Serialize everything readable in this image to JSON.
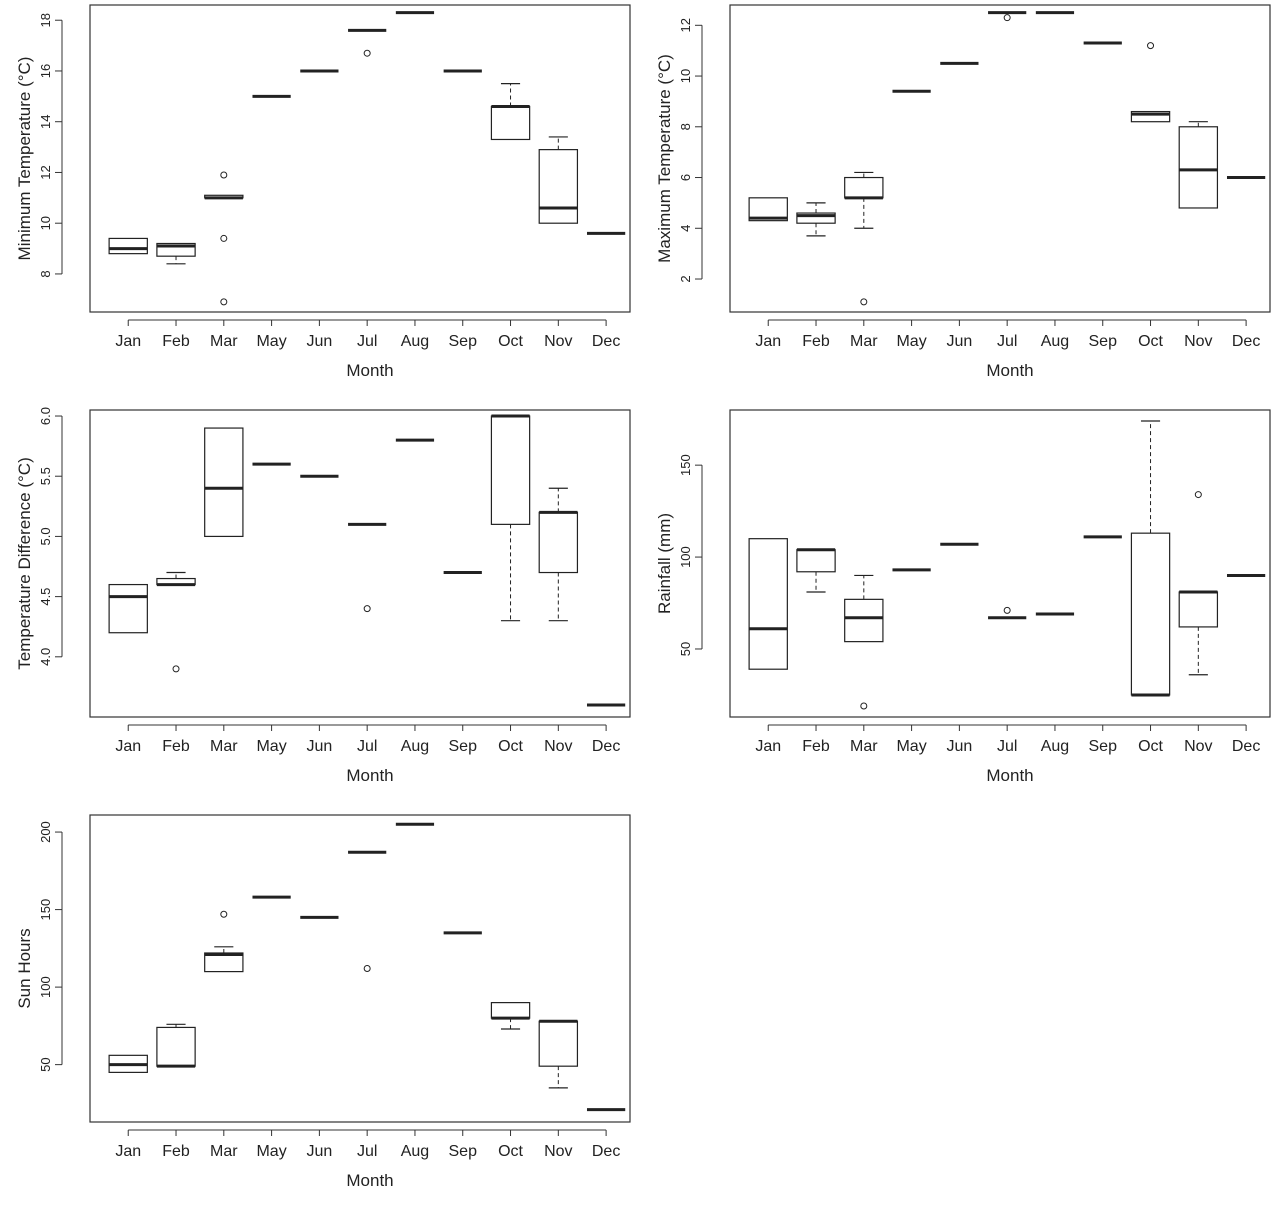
{
  "colors": {
    "axis": "#333333",
    "box": "#222222",
    "text": "#222222"
  },
  "chart_data": [
    {
      "type": "box",
      "id": "tmin",
      "xlabel": "Month",
      "ylabel": "Minimum Temperature (°C)",
      "categories": [
        "Jan",
        "Feb",
        "Mar",
        "May",
        "Jun",
        "Jul",
        "Aug",
        "Sep",
        "Oct",
        "Nov",
        "Dec"
      ],
      "ylim": [
        6.5,
        18.6
      ],
      "yticks": [
        8,
        10,
        12,
        14,
        16,
        18
      ],
      "grid": false,
      "boxes": [
        {
          "min": 8.8,
          "q1": 8.8,
          "median": 9.0,
          "q3": 9.4,
          "max": 9.4,
          "outliers": []
        },
        {
          "min": 8.4,
          "q1": 8.7,
          "median": 9.1,
          "q3": 9.2,
          "max": 9.2,
          "outliers": []
        },
        {
          "min": 11.0,
          "q1": 11.0,
          "median": 11.0,
          "q3": 11.1,
          "max": 11.1,
          "outliers": [
            11.9,
            9.4,
            6.9
          ]
        },
        {
          "min": 15.0,
          "q1": 15.0,
          "median": 15.0,
          "q3": 15.0,
          "max": 15.0,
          "outliers": []
        },
        {
          "min": 16.0,
          "q1": 16.0,
          "median": 16.0,
          "q3": 16.0,
          "max": 16.0,
          "outliers": []
        },
        {
          "min": 17.6,
          "q1": 17.6,
          "median": 17.6,
          "q3": 17.6,
          "max": 17.6,
          "outliers": [
            16.7
          ]
        },
        {
          "min": 18.3,
          "q1": 18.3,
          "median": 18.3,
          "q3": 18.3,
          "max": 18.3,
          "outliers": []
        },
        {
          "min": 16.0,
          "q1": 16.0,
          "median": 16.0,
          "q3": 16.0,
          "max": 16.0,
          "outliers": []
        },
        {
          "min": 13.3,
          "q1": 13.3,
          "median": 14.6,
          "q3": 14.6,
          "max": 15.5,
          "outliers": []
        },
        {
          "min": 10.0,
          "q1": 10.0,
          "median": 10.6,
          "q3": 12.9,
          "max": 13.4,
          "outliers": []
        },
        {
          "min": 9.6,
          "q1": 9.6,
          "median": 9.6,
          "q3": 9.6,
          "max": 9.6,
          "outliers": []
        }
      ]
    },
    {
      "type": "box",
      "id": "tmax",
      "xlabel": "Month",
      "ylabel": "Maximum Temperature (°C)",
      "categories": [
        "Jan",
        "Feb",
        "Mar",
        "May",
        "Jun",
        "Jul",
        "Aug",
        "Sep",
        "Oct",
        "Nov",
        "Dec"
      ],
      "ylim": [
        0.7,
        12.8
      ],
      "yticks": [
        2,
        4,
        6,
        8,
        10,
        12
      ],
      "grid": false,
      "boxes": [
        {
          "min": 4.3,
          "q1": 4.3,
          "median": 4.4,
          "q3": 5.2,
          "max": 5.2,
          "outliers": []
        },
        {
          "min": 3.7,
          "q1": 4.2,
          "median": 4.5,
          "q3": 4.6,
          "max": 5.0,
          "outliers": []
        },
        {
          "min": 4.0,
          "q1": 5.2,
          "median": 5.2,
          "q3": 6.0,
          "max": 6.2,
          "outliers": [
            1.1
          ]
        },
        {
          "min": 9.4,
          "q1": 9.4,
          "median": 9.4,
          "q3": 9.4,
          "max": 9.4,
          "outliers": []
        },
        {
          "min": 10.5,
          "q1": 10.5,
          "median": 10.5,
          "q3": 10.5,
          "max": 10.5,
          "outliers": []
        },
        {
          "min": 12.5,
          "q1": 12.5,
          "median": 12.5,
          "q3": 12.5,
          "max": 12.5,
          "outliers": [
            12.3
          ]
        },
        {
          "min": 12.5,
          "q1": 12.5,
          "median": 12.5,
          "q3": 12.5,
          "max": 12.5,
          "outliers": []
        },
        {
          "min": 11.3,
          "q1": 11.3,
          "median": 11.3,
          "q3": 11.3,
          "max": 11.3,
          "outliers": []
        },
        {
          "min": 8.2,
          "q1": 8.2,
          "median": 8.5,
          "q3": 8.6,
          "max": 8.6,
          "outliers": [
            11.2
          ]
        },
        {
          "min": 4.8,
          "q1": 4.8,
          "median": 6.3,
          "q3": 8.0,
          "max": 8.2,
          "outliers": []
        },
        {
          "min": 6.0,
          "q1": 6.0,
          "median": 6.0,
          "q3": 6.0,
          "max": 6.0,
          "outliers": []
        }
      ]
    },
    {
      "type": "box",
      "id": "tdiff",
      "xlabel": "Month",
      "ylabel": "Temperature Difference (°C)",
      "categories": [
        "Jan",
        "Feb",
        "Mar",
        "May",
        "Jun",
        "Jul",
        "Aug",
        "Sep",
        "Oct",
        "Nov",
        "Dec"
      ],
      "ylim": [
        3.5,
        6.05
      ],
      "yticks": [
        4.0,
        4.5,
        5.0,
        5.5,
        6.0
      ],
      "yticklabels": [
        "4.0",
        "4.5",
        "5.0",
        "5.5",
        "6.0"
      ],
      "grid": false,
      "boxes": [
        {
          "min": 4.2,
          "q1": 4.2,
          "median": 4.5,
          "q3": 4.6,
          "max": 4.6,
          "outliers": []
        },
        {
          "min": 4.6,
          "q1": 4.6,
          "median": 4.6,
          "q3": 4.65,
          "max": 4.7,
          "outliers": [
            3.9
          ]
        },
        {
          "min": 5.0,
          "q1": 5.0,
          "median": 5.4,
          "q3": 5.9,
          "max": 5.9,
          "outliers": []
        },
        {
          "min": 5.6,
          "q1": 5.6,
          "median": 5.6,
          "q3": 5.6,
          "max": 5.6,
          "outliers": []
        },
        {
          "min": 5.5,
          "q1": 5.5,
          "median": 5.5,
          "q3": 5.5,
          "max": 5.5,
          "outliers": []
        },
        {
          "min": 5.1,
          "q1": 5.1,
          "median": 5.1,
          "q3": 5.1,
          "max": 5.1,
          "outliers": [
            4.4
          ]
        },
        {
          "min": 5.8,
          "q1": 5.8,
          "median": 5.8,
          "q3": 5.8,
          "max": 5.8,
          "outliers": []
        },
        {
          "min": 4.7,
          "q1": 4.7,
          "median": 4.7,
          "q3": 4.7,
          "max": 4.7,
          "outliers": []
        },
        {
          "min": 4.3,
          "q1": 5.1,
          "median": 6.0,
          "q3": 6.0,
          "max": 6.0,
          "outliers": []
        },
        {
          "min": 4.3,
          "q1": 4.7,
          "median": 5.2,
          "q3": 5.2,
          "max": 5.4,
          "outliers": []
        },
        {
          "min": 3.6,
          "q1": 3.6,
          "median": 3.6,
          "q3": 3.6,
          "max": 3.6,
          "outliers": []
        }
      ]
    },
    {
      "type": "box",
      "id": "rain",
      "xlabel": "Month",
      "ylabel": "Rainfall (mm)",
      "categories": [
        "Jan",
        "Feb",
        "Mar",
        "May",
        "Jun",
        "Jul",
        "Aug",
        "Sep",
        "Oct",
        "Nov",
        "Dec"
      ],
      "ylim": [
        13,
        180
      ],
      "yticks": [
        50,
        100,
        150
      ],
      "grid": false,
      "boxes": [
        {
          "min": 39,
          "q1": 39,
          "median": 61,
          "q3": 110,
          "max": 110,
          "outliers": []
        },
        {
          "min": 81,
          "q1": 92,
          "median": 104,
          "q3": 104,
          "max": 104,
          "outliers": []
        },
        {
          "min": 54,
          "q1": 54,
          "median": 67,
          "q3": 77,
          "max": 90,
          "outliers": [
            19
          ]
        },
        {
          "min": 93,
          "q1": 93,
          "median": 93,
          "q3": 93,
          "max": 93,
          "outliers": []
        },
        {
          "min": 107,
          "q1": 107,
          "median": 107,
          "q3": 107,
          "max": 107,
          "outliers": []
        },
        {
          "min": 67,
          "q1": 67,
          "median": 67,
          "q3": 67,
          "max": 67,
          "outliers": [
            71
          ]
        },
        {
          "min": 69,
          "q1": 69,
          "median": 69,
          "q3": 69,
          "max": 69,
          "outliers": []
        },
        {
          "min": 111,
          "q1": 111,
          "median": 111,
          "q3": 111,
          "max": 111,
          "outliers": []
        },
        {
          "min": 25,
          "q1": 25,
          "median": 25,
          "q3": 113,
          "max": 174,
          "outliers": []
        },
        {
          "min": 36,
          "q1": 62,
          "median": 81,
          "q3": 81,
          "max": 81,
          "outliers": [
            134
          ]
        },
        {
          "min": 90,
          "q1": 90,
          "median": 90,
          "q3": 90,
          "max": 90,
          "outliers": []
        }
      ]
    },
    {
      "type": "box",
      "id": "sun",
      "xlabel": "Month",
      "ylabel": "Sun Hours",
      "categories": [
        "Jan",
        "Feb",
        "Mar",
        "May",
        "Jun",
        "Jul",
        "Aug",
        "Sep",
        "Oct",
        "Nov",
        "Dec"
      ],
      "ylim": [
        13,
        211
      ],
      "yticks": [
        50,
        100,
        150,
        200
      ],
      "grid": false,
      "boxes": [
        {
          "min": 45,
          "q1": 45,
          "median": 50,
          "q3": 56,
          "max": 56,
          "outliers": []
        },
        {
          "min": 49,
          "q1": 49,
          "median": 49,
          "q3": 74,
          "max": 76,
          "outliers": []
        },
        {
          "min": 110,
          "q1": 110,
          "median": 121,
          "q3": 122,
          "max": 126,
          "outliers": [
            147
          ]
        },
        {
          "min": 158,
          "q1": 158,
          "median": 158,
          "q3": 158,
          "max": 158,
          "outliers": []
        },
        {
          "min": 145,
          "q1": 145,
          "median": 145,
          "q3": 145,
          "max": 145,
          "outliers": []
        },
        {
          "min": 187,
          "q1": 187,
          "median": 187,
          "q3": 187,
          "max": 187,
          "outliers": [
            112
          ]
        },
        {
          "min": 205,
          "q1": 205,
          "median": 205,
          "q3": 205,
          "max": 205,
          "outliers": []
        },
        {
          "min": 135,
          "q1": 135,
          "median": 135,
          "q3": 135,
          "max": 135,
          "outliers": []
        },
        {
          "min": 73,
          "q1": 80,
          "median": 80,
          "q3": 90,
          "max": 90,
          "outliers": []
        },
        {
          "min": 35,
          "q1": 49,
          "median": 78,
          "q3": 78,
          "max": 78,
          "outliers": []
        },
        {
          "min": 21,
          "q1": 21,
          "median": 21,
          "q3": 21,
          "max": 21,
          "outliers": []
        }
      ]
    }
  ]
}
